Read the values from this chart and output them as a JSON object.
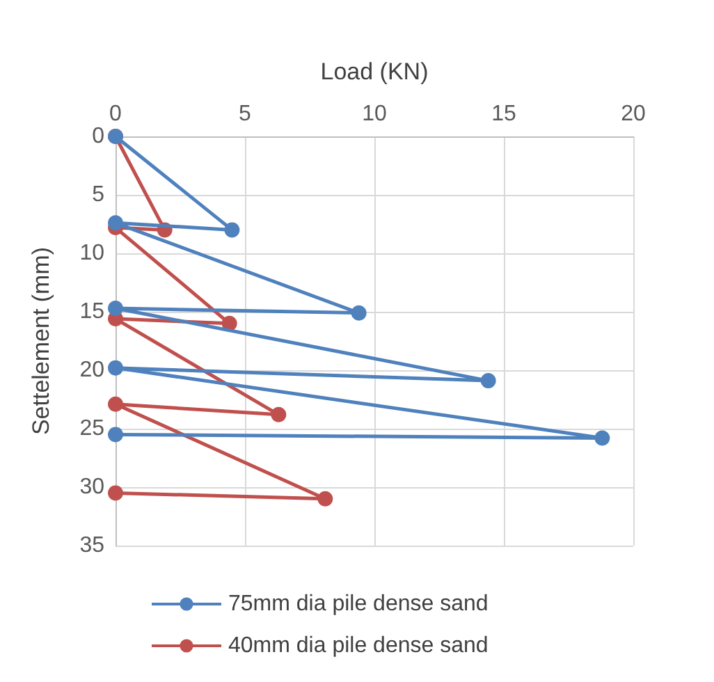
{
  "chart_data": {
    "type": "line",
    "xlabel": "Load (KN)",
    "ylabel": "Settelement (mm)",
    "xlim": [
      0,
      20
    ],
    "xticks": [
      0,
      5,
      10,
      15,
      20
    ],
    "ylim": [
      35,
      0
    ],
    "yticks": [
      0,
      5,
      10,
      15,
      20,
      25,
      30,
      35
    ],
    "grid": true,
    "legend": "bottom",
    "marker": "circle",
    "line_style": "solid",
    "series": [
      {
        "name": "75mm dia pile dense sand",
        "color": "#4f81bd",
        "x": [
          0,
          4.5,
          0,
          9.4,
          0,
          14.4,
          0,
          18.8,
          0
        ],
        "values": [
          0,
          8,
          7.4,
          15.1,
          14.7,
          20.9,
          19.8,
          25.8,
          25.5
        ]
      },
      {
        "name": "40mm dia pile dense sand",
        "color": "#c0504d",
        "x": [
          0,
          1.9,
          0,
          4.4,
          0,
          6.3,
          0,
          8.1,
          0
        ],
        "values": [
          0,
          8,
          7.8,
          16,
          15.6,
          23.8,
          22.9,
          31,
          30.5
        ]
      }
    ]
  }
}
